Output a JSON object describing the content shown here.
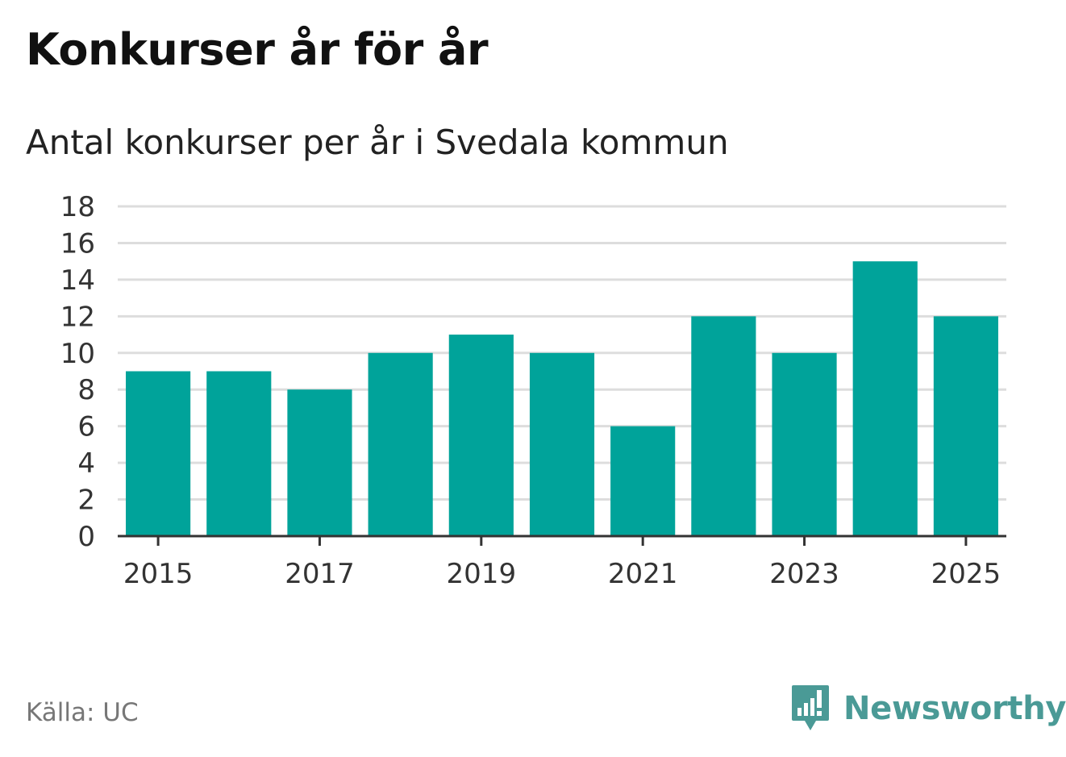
{
  "title": "Konkurser år för år",
  "subtitle": "Antal konkurser per år i Svedala kommun",
  "source": "Källa: UC",
  "brand": {
    "name": "Newsworthy",
    "icon": "newsworthy-logo-icon",
    "color": "#4a9a96"
  },
  "colors": {
    "bar": "#00a39a",
    "grid": "#dddddd",
    "axis": "#333333",
    "tick_text": "#333333"
  },
  "chart_data": {
    "type": "bar",
    "categories": [
      "2015",
      "2016",
      "2017",
      "2018",
      "2019",
      "2020",
      "2021",
      "2022",
      "2023",
      "2024",
      "2025"
    ],
    "values": [
      9,
      9,
      8,
      10,
      11,
      10,
      6,
      12,
      10,
      15,
      12
    ],
    "x_tick_labels": [
      "2015",
      "2017",
      "2019",
      "2021",
      "2023",
      "2025"
    ],
    "y_ticks": [
      0,
      2,
      4,
      6,
      8,
      10,
      12,
      14,
      16,
      18
    ],
    "ylim": [
      0,
      18
    ],
    "grid": true,
    "legend": "none",
    "xlabel": "",
    "ylabel": ""
  }
}
